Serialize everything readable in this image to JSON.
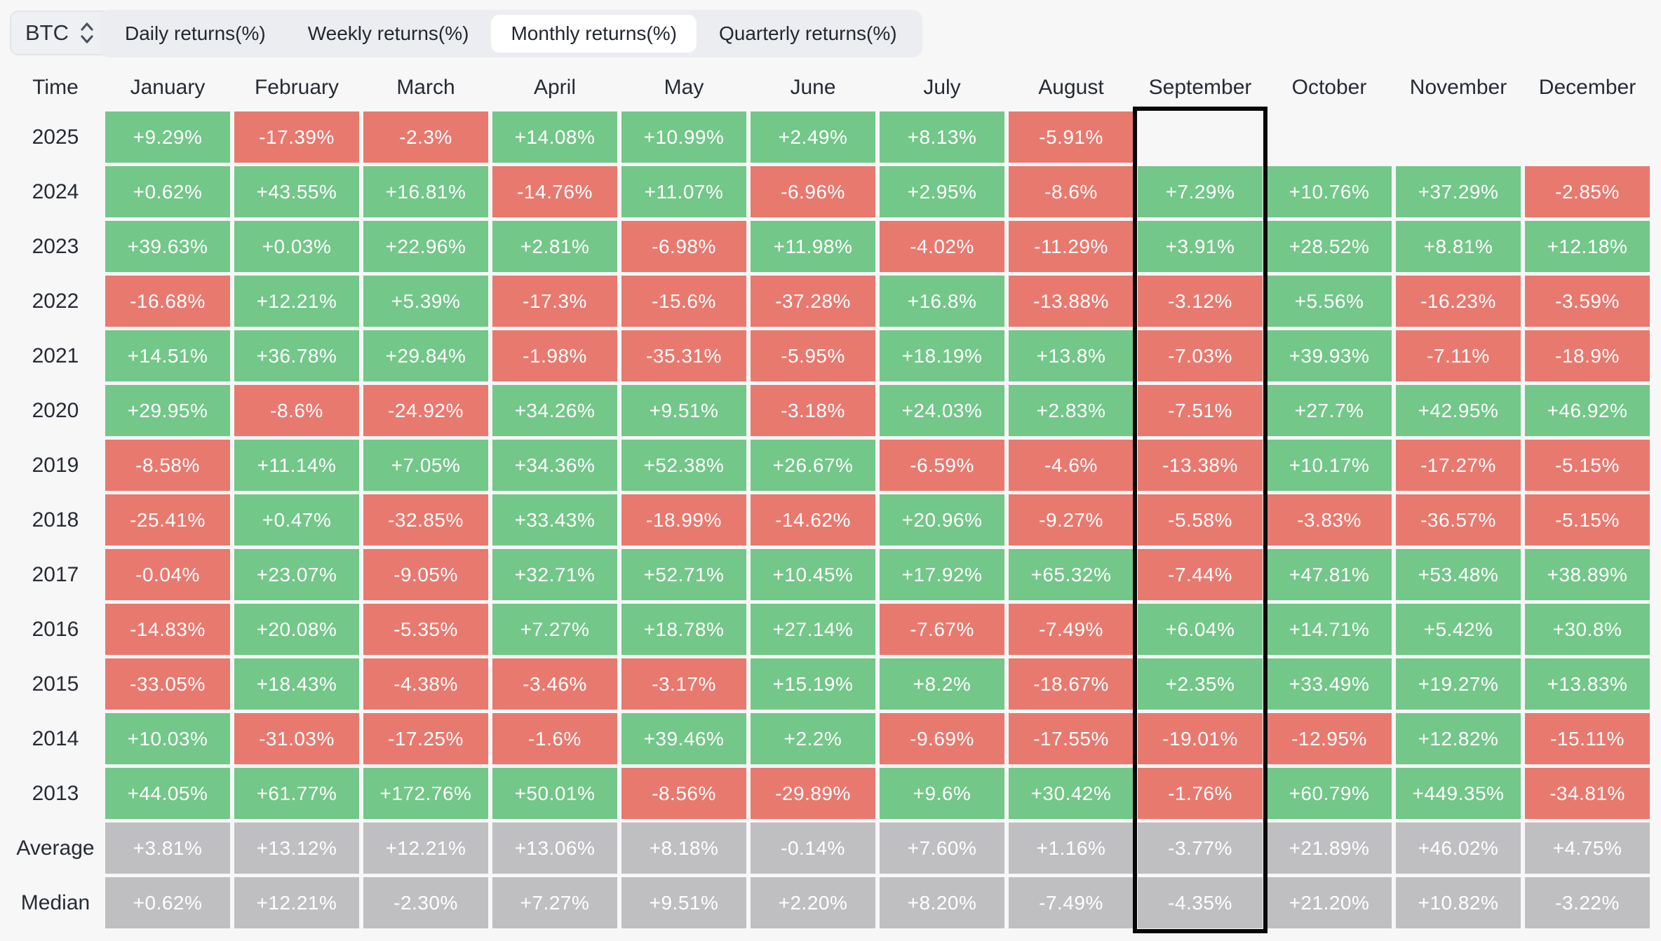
{
  "controls": {
    "symbol_select": {
      "value": "BTC"
    },
    "tabs": [
      {
        "label": "Daily returns(%)",
        "active": false
      },
      {
        "label": "Weekly returns(%)",
        "active": false
      },
      {
        "label": "Monthly returns(%)",
        "active": true
      },
      {
        "label": "Quarterly returns(%)",
        "active": false
      }
    ]
  },
  "chart_data": {
    "type": "heatmap",
    "title": "BTC Monthly returns(%)",
    "row_header": "Time",
    "columns": [
      "January",
      "February",
      "March",
      "April",
      "May",
      "June",
      "July",
      "August",
      "September",
      "October",
      "November",
      "December"
    ],
    "highlighted_column": "September",
    "colors": {
      "positive": "#73c789",
      "negative": "#e8796f",
      "summary": "#bfbfc1",
      "highlight_border": "#060606"
    },
    "rows": [
      {
        "label": "2025",
        "summary": false,
        "values": [
          "+9.29%",
          "-17.39%",
          "-2.3%",
          "+14.08%",
          "+10.99%",
          "+2.49%",
          "+8.13%",
          "-5.91%",
          null,
          null,
          null,
          null
        ]
      },
      {
        "label": "2024",
        "summary": false,
        "values": [
          "+0.62%",
          "+43.55%",
          "+16.81%",
          "-14.76%",
          "+11.07%",
          "-6.96%",
          "+2.95%",
          "-8.6%",
          "+7.29%",
          "+10.76%",
          "+37.29%",
          "-2.85%"
        ]
      },
      {
        "label": "2023",
        "summary": false,
        "values": [
          "+39.63%",
          "+0.03%",
          "+22.96%",
          "+2.81%",
          "-6.98%",
          "+11.98%",
          "-4.02%",
          "-11.29%",
          "+3.91%",
          "+28.52%",
          "+8.81%",
          "+12.18%"
        ]
      },
      {
        "label": "2022",
        "summary": false,
        "values": [
          "-16.68%",
          "+12.21%",
          "+5.39%",
          "-17.3%",
          "-15.6%",
          "-37.28%",
          "+16.8%",
          "-13.88%",
          "-3.12%",
          "+5.56%",
          "-16.23%",
          "-3.59%"
        ]
      },
      {
        "label": "2021",
        "summary": false,
        "values": [
          "+14.51%",
          "+36.78%",
          "+29.84%",
          "-1.98%",
          "-35.31%",
          "-5.95%",
          "+18.19%",
          "+13.8%",
          "-7.03%",
          "+39.93%",
          "-7.11%",
          "-18.9%"
        ]
      },
      {
        "label": "2020",
        "summary": false,
        "values": [
          "+29.95%",
          "-8.6%",
          "-24.92%",
          "+34.26%",
          "+9.51%",
          "-3.18%",
          "+24.03%",
          "+2.83%",
          "-7.51%",
          "+27.7%",
          "+42.95%",
          "+46.92%"
        ]
      },
      {
        "label": "2019",
        "summary": false,
        "values": [
          "-8.58%",
          "+11.14%",
          "+7.05%",
          "+34.36%",
          "+52.38%",
          "+26.67%",
          "-6.59%",
          "-4.6%",
          "-13.38%",
          "+10.17%",
          "-17.27%",
          "-5.15%"
        ]
      },
      {
        "label": "2018",
        "summary": false,
        "values": [
          "-25.41%",
          "+0.47%",
          "-32.85%",
          "+33.43%",
          "-18.99%",
          "-14.62%",
          "+20.96%",
          "-9.27%",
          "-5.58%",
          "-3.83%",
          "-36.57%",
          "-5.15%"
        ]
      },
      {
        "label": "2017",
        "summary": false,
        "values": [
          "-0.04%",
          "+23.07%",
          "-9.05%",
          "+32.71%",
          "+52.71%",
          "+10.45%",
          "+17.92%",
          "+65.32%",
          "-7.44%",
          "+47.81%",
          "+53.48%",
          "+38.89%"
        ]
      },
      {
        "label": "2016",
        "summary": false,
        "values": [
          "-14.83%",
          "+20.08%",
          "-5.35%",
          "+7.27%",
          "+18.78%",
          "+27.14%",
          "-7.67%",
          "-7.49%",
          "+6.04%",
          "+14.71%",
          "+5.42%",
          "+30.8%"
        ]
      },
      {
        "label": "2015",
        "summary": false,
        "values": [
          "-33.05%",
          "+18.43%",
          "-4.38%",
          "-3.46%",
          "-3.17%",
          "+15.19%",
          "+8.2%",
          "-18.67%",
          "+2.35%",
          "+33.49%",
          "+19.27%",
          "+13.83%"
        ]
      },
      {
        "label": "2014",
        "summary": false,
        "values": [
          "+10.03%",
          "-31.03%",
          "-17.25%",
          "-1.6%",
          "+39.46%",
          "+2.2%",
          "-9.69%",
          "-17.55%",
          "-19.01%",
          "-12.95%",
          "+12.82%",
          "-15.11%"
        ]
      },
      {
        "label": "2013",
        "summary": false,
        "values": [
          "+44.05%",
          "+61.77%",
          "+172.76%",
          "+50.01%",
          "-8.56%",
          "-29.89%",
          "+9.6%",
          "+30.42%",
          "-1.76%",
          "+60.79%",
          "+449.35%",
          "-34.81%"
        ]
      },
      {
        "label": "Average",
        "summary": true,
        "values": [
          "+3.81%",
          "+13.12%",
          "+12.21%",
          "+13.06%",
          "+8.18%",
          "-0.14%",
          "+7.60%",
          "+1.16%",
          "-3.77%",
          "+21.89%",
          "+46.02%",
          "+4.75%"
        ]
      },
      {
        "label": "Median",
        "summary": true,
        "values": [
          "+0.62%",
          "+12.21%",
          "-2.30%",
          "+7.27%",
          "+9.51%",
          "+2.20%",
          "+8.20%",
          "-7.49%",
          "-4.35%",
          "+21.20%",
          "+10.82%",
          "-3.22%"
        ]
      }
    ]
  }
}
